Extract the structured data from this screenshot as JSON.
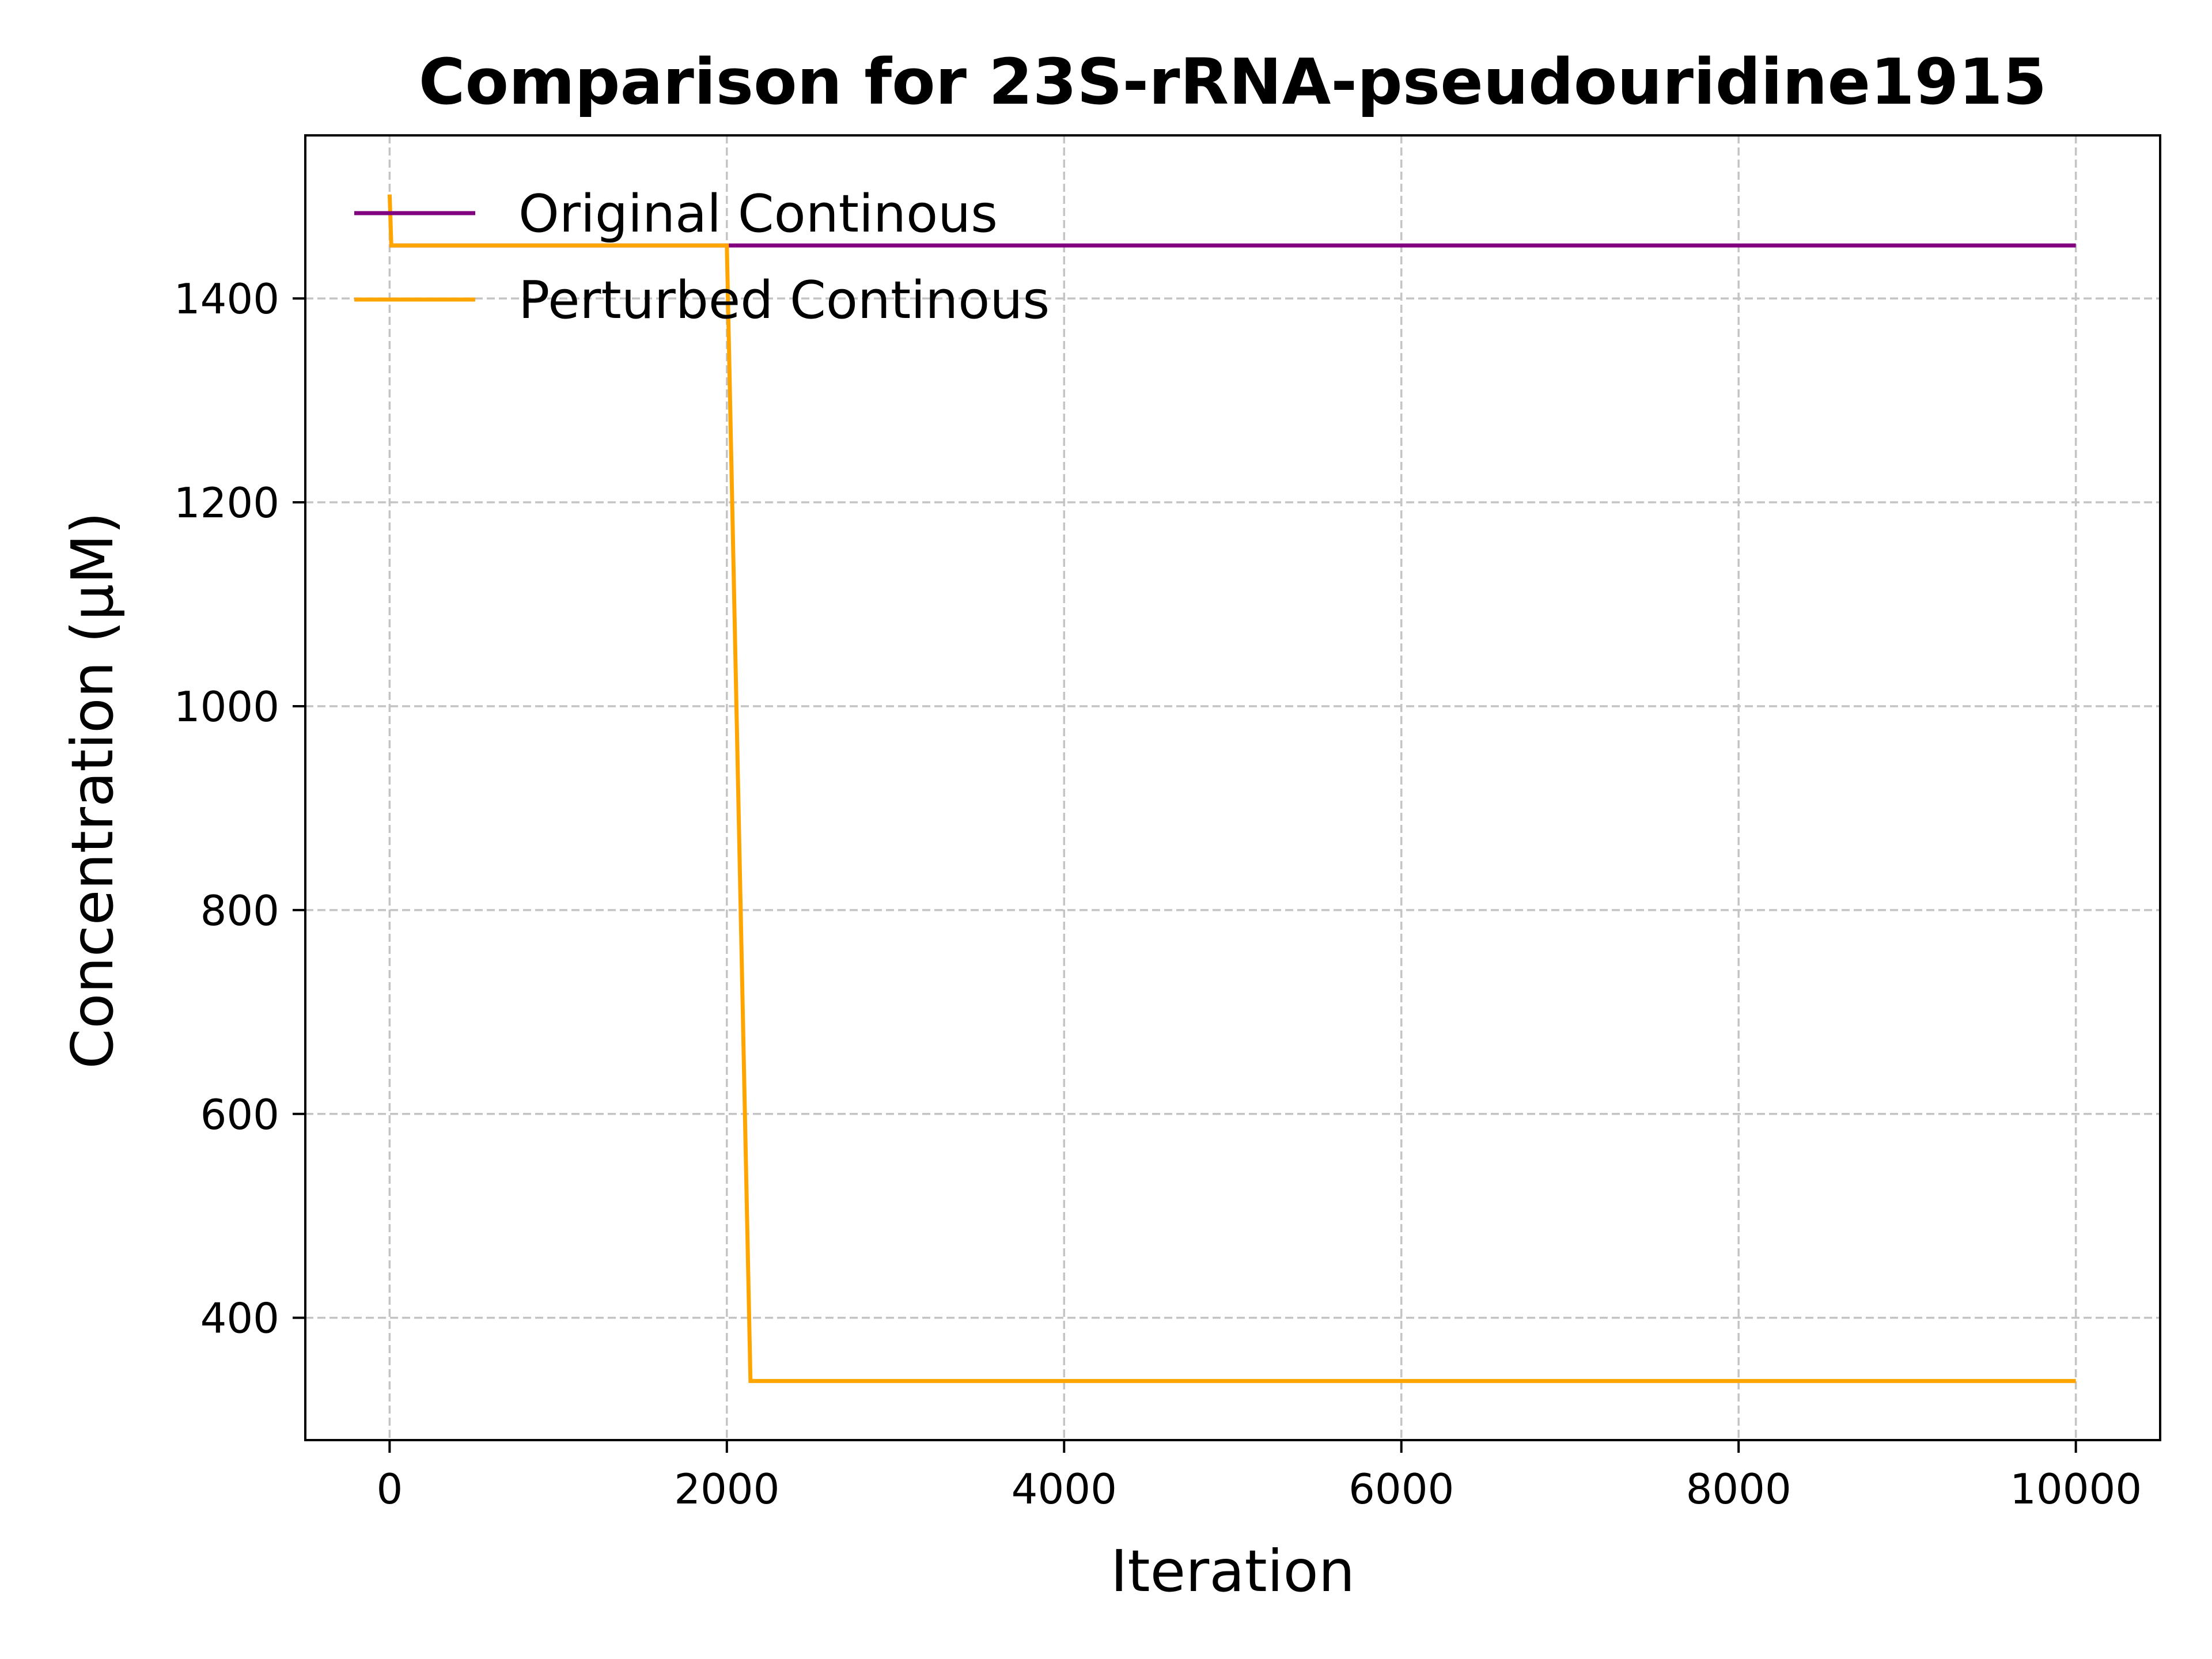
{
  "chart_data": {
    "type": "line",
    "title": "Comparison for 23S-rRNA-pseudouridine1915",
    "xlabel": "Iteration",
    "ylabel": "Concentration (μM)",
    "xlim": [
      -500,
      10500
    ],
    "ylim": [
      280,
      1560
    ],
    "xticks": [
      0,
      2000,
      4000,
      6000,
      8000,
      10000
    ],
    "yticks": [
      400,
      600,
      800,
      1000,
      1200,
      1400
    ],
    "xtick_labels": [
      "0",
      "2000",
      "4000",
      "6000",
      "8000",
      "10000"
    ],
    "ytick_labels": [
      "400",
      "600",
      "800",
      "1000",
      "1200",
      "1400"
    ],
    "grid": true,
    "legend_position": "upper-left",
    "series": [
      {
        "name": "Original Continous",
        "color": "#800080",
        "points": [
          [
            0,
            1452
          ],
          [
            10000,
            1452
          ]
        ]
      },
      {
        "name": "Perturbed Continous",
        "color": "#FFA500",
        "points": [
          [
            0,
            1502
          ],
          [
            10,
            1452
          ],
          [
            2000,
            1452
          ],
          [
            2140,
            338
          ],
          [
            10000,
            338
          ]
        ]
      }
    ]
  }
}
